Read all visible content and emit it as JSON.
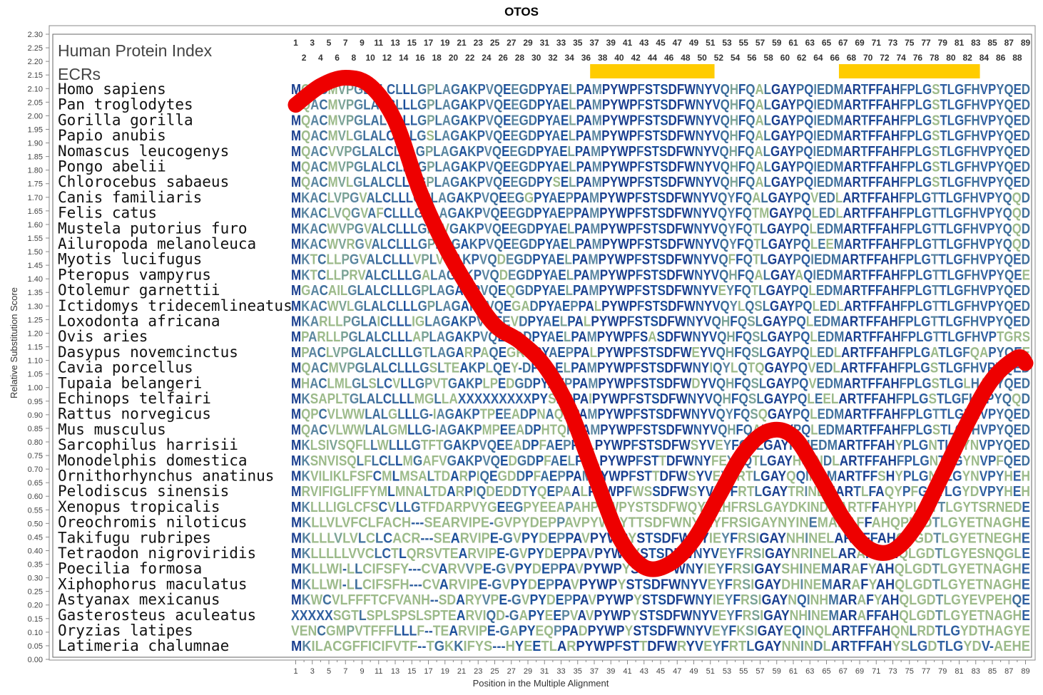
{
  "chart_data": {
    "type": "line",
    "title": "OTOS",
    "xlabel": "Position in the Multiple Alignment",
    "ylabel": "Relative Substitution Score",
    "xlim": [
      1,
      89
    ],
    "ylim": [
      0,
      2.3
    ],
    "y_ticks": [
      "0.00",
      "0.05",
      "0.10",
      "0.15",
      "0.20",
      "0.25",
      "0.30",
      "0.35",
      "0.40",
      "0.45",
      "0.50",
      "0.55",
      "0.60",
      "0.65",
      "0.70",
      "0.75",
      "0.80",
      "0.85",
      "0.90",
      "0.95",
      "1.00",
      "1.05",
      "1.10",
      "1.15",
      "1.20",
      "1.25",
      "1.30",
      "1.35",
      "1.40",
      "1.45",
      "1.50",
      "1.55",
      "1.60",
      "1.65",
      "1.70",
      "1.75",
      "1.80",
      "1.85",
      "1.90",
      "1.95",
      "2.00",
      "2.05",
      "2.10",
      "2.15",
      "2.20",
      "2.25",
      "2.30"
    ],
    "x_ticks": [
      "1",
      "3",
      "5",
      "7",
      "9",
      "11",
      "13",
      "15",
      "17",
      "19",
      "21",
      "23",
      "25",
      "27",
      "29",
      "31",
      "33",
      "35",
      "37",
      "39",
      "41",
      "43",
      "45",
      "47",
      "49",
      "51",
      "53",
      "55",
      "57",
      "59",
      "61",
      "63",
      "65",
      "67",
      "69",
      "71",
      "73",
      "75",
      "77",
      "79",
      "81",
      "83",
      "85",
      "87",
      "89"
    ],
    "human_index_odd": [
      "1",
      "3",
      "5",
      "7",
      "9",
      "11",
      "13",
      "15",
      "17",
      "19",
      "21",
      "23",
      "25",
      "27",
      "29",
      "31",
      "33",
      "35",
      "37",
      "39",
      "41",
      "43",
      "45",
      "47",
      "49",
      "51",
      "53",
      "55",
      "57",
      "59",
      "61",
      "63",
      "65",
      "67",
      "69",
      "71",
      "73",
      "75",
      "77",
      "79",
      "81",
      "83",
      "85",
      "87",
      "89"
    ],
    "human_index_even": [
      "2",
      "4",
      "6",
      "8",
      "10",
      "12",
      "14",
      "16",
      "18",
      "20",
      "22",
      "24",
      "26",
      "28",
      "30",
      "32",
      "34",
      "36",
      "38",
      "40",
      "42",
      "44",
      "46",
      "48",
      "50",
      "52",
      "54",
      "56",
      "58",
      "60",
      "62",
      "64",
      "66",
      "68",
      "70",
      "72",
      "74",
      "76",
      "78",
      "80",
      "82",
      "84",
      "86",
      "88"
    ],
    "label_human_index": "Human Protein Index",
    "label_ecrs": "ECRs",
    "ecrs": [
      [
        37,
        51
      ],
      [
        67,
        83
      ]
    ],
    "ecr_color": "#ffcc00",
    "curve_color": "#ee0000",
    "series": [
      {
        "x": [
          1,
          4,
          7,
          10,
          13,
          16,
          19,
          22,
          25,
          28,
          31,
          34,
          37,
          40,
          43,
          46,
          49,
          52,
          55,
          58,
          61,
          64,
          67,
          70,
          73,
          76,
          79,
          82,
          85,
          88,
          89
        ],
        "values": [
          2.04,
          2.11,
          2.14,
          2.11,
          1.98,
          1.72,
          1.52,
          1.36,
          1.23,
          1.17,
          1.08,
          0.92,
          0.68,
          0.45,
          0.34,
          0.35,
          0.44,
          0.6,
          0.76,
          0.84,
          0.82,
          0.68,
          0.52,
          0.41,
          0.4,
          0.5,
          0.68,
          0.87,
          1.03,
          1.11,
          1.09
        ]
      }
    ],
    "species": [
      "Homo sapiens",
      "Pan troglodytes",
      "Gorilla gorilla",
      "Papio anubis",
      "Nomascus leucogenys",
      "Pongo abelii",
      "Chlorocebus sabaeus",
      "Canis familiaris",
      "Felis catus",
      "Mustela putorius furo",
      "Ailuropoda melanoleuca",
      "Myotis lucifugus",
      "Pteropus vampyrus",
      "Otolemur garnettii",
      "Ictidomys tridecemlineatus",
      "Loxodonta africana",
      "Ovis aries",
      "Dasypus novemcinctus",
      "Cavia porcellus",
      "Tupaia belangeri",
      "Echinops telfairi",
      "Rattus norvegicus",
      "Mus musculus",
      "Sarcophilus harrisii",
      "Monodelphis domestica",
      "Ornithorhynchus anatinus",
      "Pelodiscus sinensis",
      "Xenopus tropicalis",
      "Oreochromis niloticus",
      "Takifugu rubripes",
      "Tetraodon nigroviridis",
      "Poecilia formosa",
      "Xiphophorus maculatus",
      "Astyanax mexicanus",
      "Gasterosteus aculeatus",
      "Oryzias latipes",
      "Latimeria chalumnae"
    ],
    "sequences": [
      "MQACMVPGLALCLLLGPLAGAKPVQEEGDPYAELPAMPYWPFSTSDFWNYVQHFQALGAYPQIEDMARTFFAHFPLGSTLGFHVPYQED",
      "MQACMVPGLALCLLLGPLAGAKPVQEEGDPYAELPAMPYWPFSTSDFWNYVQHFQALGAYPQIEDMARTFFAHFPLGSTLGFHVPYQED",
      "MQACMVPGLALCLLLGPLAGAKPVQEEGDPYAELPAMPYWPFSTSDFWNYVQHFQALGAYPQIEDMARTFFAHFPLGSTLGFHVPYQED",
      "MQACMVLGLALCLLLGSLAGAKPVQEEGDPYAELPAMPYWPFSTSDFWNYVQHFQALGAYPQIEDMARTFFAHFPLGSTLGFHVPYQED",
      "MQACVVPGLALCLLLGPLAGAKPVQEEGDPYAELPAMPYWPFSTSDFWNYVQHFQALGAYPQIEDMARTFFAHFPLGSTLGFHVPYQED",
      "MQACMVPGLALCLLLGPLAGAKPVQEEGDPYAELPAMPYWPFSTSDFWNYVQHFQALGAYPQIEDMARTFFAHFPLGSTLGFHVPYQED",
      "MQACMVLGLALCLLLGPLAGAKPVQEEGDPYSELPAMPYWPFSTSDFWNYVQHFQALGAYPQIEDMARTFFAHFPLGSTLGFHVPYQED",
      "MKACLVPGVALCLLLGPLAGAKPVQEEGGPYAEPPAMPYWPFSTSDFWNYVQYFQALGAYPQVEDLARTFFAHFPLGTTLGFHVPYQQD",
      "MKACLVQGVAFCLLLGPLAGAKPVQEEGDPYAEPPAMPYWPFSTSDFWNYVQYFQTMGAYPQLEDLARTFFAHFPLGTTLGFHVPYQQD",
      "MKACWVPGVALCLLLGPLVGAKPVQEEGDPYAELPAMPYWPFSTSDFWNYVQYFQTLGAYPQLEDMARTFFAHFPLGTTLGFHVPYQQD",
      "MKACWVRGVALCLLLGPLAGAKPVQEEGDPYAELPAMPYWPFSTSDFWNYVQYFQTLGAYPQLEEMARTFFAHFPLGTTLGFHVPYQQD",
      "MKTCLLPGVALCLLLVPLVGAKPVQDEGDPYAELPAMPYWPFSTSDFWNYVQFFQTLGAYPQIEDMARTFFAHFPLGTTLGFHVPYQED",
      "MKTCLLPRVALCLLLGALAGAKPVQDEGDPYAELPAMPYWPFSTSDFWNYVQHFQALGAYAQIEDMARTFFAHFPLGTTLGFHVPYQEE",
      "MGACAILGLALCLLLGPLAGAKPVQEQGDPYAELPAMPYWPFSTSDFWNYVEYFQTLGAYPQLEDMARTFFAHFPLGTTLGFHVPYQED",
      "MKACWVLGLALCLLLGPLAGAKPVQEGADPYAEPPALPYWPFSTSDFWNYVQYLQSLGAYPQLEDLARTFFAHFPLGTTLGFHVPYQED",
      "MKARLLPGLAICLLLIGLAGAKPVQEEVDPYAELPALPYWPFSTSDFWNYVQHFQSLGAYPQLEDMARTFFAHFPLGTTLGFHVPYQED",
      "MPARLLPGLALCLLLAPLAGAKPVQEEGDPYAELPAMPYWPFSASDFWNYVQHFQSLGAYPQLEDMARTFFAHFPLGTTLGFHVPTGRS",
      "MPACLVPGLALCLLLGTLAGARPAQEGRDPYAEPPALPYWPFSTSDFWEYVQHFQSLGAYPQLEDLARTFFAHFPLGATLGFQAPYQEE",
      "MQACMVPGLALCLLLGSLTEAKPLQEY-DPYAELPAMPYWPFSTSDFWNYIQYLQTQGAYPQVEDLARTFFAHFPLGSTLGFHVPYQED",
      "MHACLMLGLSLCVLLGPVTGAKPLPEDGDPYAEPPAMPYWPFSTSDFWDYVQHFQSLGAYPQVEDMARTFFAHFPLGSTLGLHAPYQED",
      "MKSAPLTGLALCLLLMGLLAXXXXXXXXXPYSEPPAIPYWPFSTSDFWNYVQHFQSLGAYPQLEELARTFFAHFPLGSTLGFHVPYQQD",
      "MQPCVLWWLALGLLLG-IAGAKPTPEEADPNAQPPAMPYWPFSTSDFWNYVQYFQSQGAYPQLEDMARTFFAHFPLGTTLGFHVPYQED",
      "MQACVLWWLALGMLLG-IAGAKPMPEEADPHTQPPAMPYWPFSTSDFWNYVQHFQALGAYPQLEDMARTFFAHFPLGSTLGFHVPYQED",
      "MKLSIVSQFLLWLLLGTFTGAKPVQEEADPFAEPPALPYWPFSTSDFWSYVEYFQTLGAYPQIEDMARTFFAHYPLGNTLGYNVPYQED",
      "MKSNVISQLFLCLLMGAFVGAKPVQEDGDPFAELPDLPYWPFSTTDFWNYFEYFQTLGAYHQINDLARTFFAHFPLGNTLGYNVPFQED",
      "MKVILIKLFSFCMLMSALTDARPIQEGDDPFAEPPAMPYWPFSTTDFWSYVEYFRTLGAYQQINDMARTFFSHYPLGNTLGYNVPYHEH",
      "MRVIFIGLIFFYMLMNALTDARPIQDEDDTYQEPAALPYWPFWSSDFWSYVEYFRTLGAYTRINEMARTLFAQYPFGNTLGYDVPYHEH",
      "MKLLLIGLCFSCVLLGTFDARPVYGEEGPYEEAPAHPYWPYSTSDFWQYVEHFRSLGAYDKINDMARTFFAHYPLGTTLGYTSRNEDE",
      "MKLLVLVFCLFACH---SEARVIPE-GVPYDEPPAVPYWPYTTSDFWNYIEYFRSIGAYNYINEMARAFFAHQPIGDTLGYETNAGHE",
      "MKLLLVLVLCLCACR---SEARVIPE-GVPYDEPPAVPYWPYSTSDFWNYIEYFRSIGAYNHINELARAFFAHQLGDTLGYETNEGHE",
      "MKLLLLLVVCLCTLQRSVTEARVIPE-GVPYDEPPAVPYWPYSTSDFWNYVEYFRSIGAYNRINELARAFFAHQLGDTLGYESNQGLE",
      "MKLLWI-LLCIFSFY---CVARVVPE-GVPYDEPPAVPYWPYSTSDFWNYIEYFRSIGAYSHINEMARAFYAHQLGDTLGYETNAGHE",
      "MKLLWI-LLCIFSFH---CVARVIPE-GVPYDEPPAVPYWPYSTSDFWNYVEYFRSIGAYDHINEMARAFYAHQLGDTLGYETNAGHE",
      "MKWCVLFFFTCFVANH--SDARYVPE-GVPYDEPPAVPYWPYSTSDFWNYIEYFRSIGAYNQINHMARAFYAHQLGDTLGYEVPEHQE",
      "XXXXXSGTLSPLSPSLSPTEARVIQD-GAPYEEPVAVPYWPYSTSDFWNYVEYFRSIGAYNHINEMARAFFAHQLGDTLGYETNAGHE",
      "VENCGMPVTFFFLLLF--TEARVIPE-GAPYEQPPADPYWPYSTSDFWNYVEYFKSIGAYEQINQLARTFFAHQNLRDTLGYDTHAGYE",
      "MKILACGFFICIFVTF--TGKKIFYS---HYEETLARPYWPFSTTDFWRYVEYFRTLGAYNNINDLARTFFAHYSLGDTLGYDV-AEHE"
    ]
  }
}
